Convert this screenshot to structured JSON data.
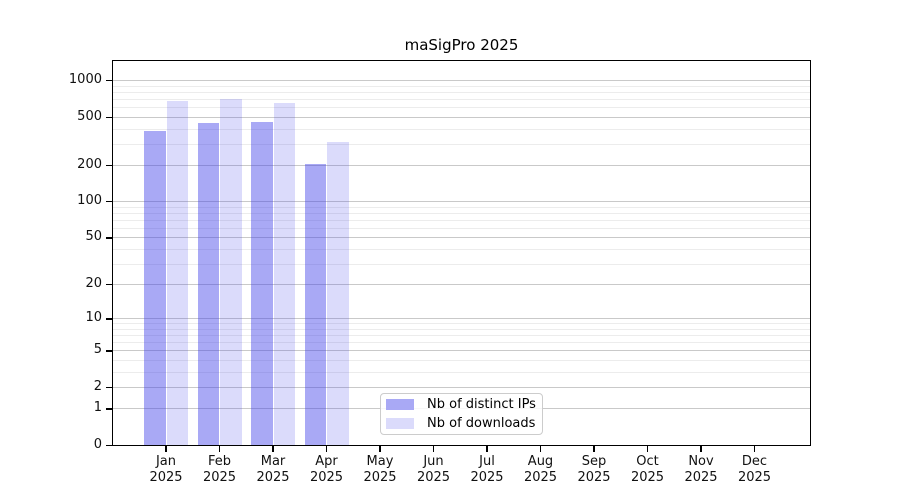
{
  "title": "maSigPro 2025",
  "colors": {
    "bar_distinct_ips": "rgba(64,64,232,0.45)",
    "bar_downloads": "rgba(64,64,232,0.19)",
    "swatch_distinct_ips": "#a9a9f5",
    "swatch_downloads": "#dbdbfb",
    "grid_major": "#c9c9c9",
    "grid_minor": "#ececec",
    "axis": "#000000",
    "legend_border": "#cccccc"
  },
  "chart_data": {
    "type": "bar",
    "title": "maSigPro 2025",
    "xlabel": "",
    "ylabel": "",
    "x_categories": [
      "Jan",
      "Feb",
      "Mar",
      "Apr",
      "May",
      "Jun",
      "Jul",
      "Aug",
      "Sep",
      "Oct",
      "Nov",
      "Dec"
    ],
    "x_year_label": "2025",
    "y_scale": "log1p",
    "y_ticks": [
      0,
      1,
      2,
      5,
      10,
      20,
      50,
      100,
      200,
      500,
      1000
    ],
    "y_minor_ticks": [
      3,
      4,
      6,
      7,
      8,
      9,
      30,
      40,
      60,
      70,
      80,
      90,
      300,
      400,
      600,
      700,
      800,
      900
    ],
    "ylim": [
      0,
      1450
    ],
    "grid": "horizontal",
    "legend_position": "inside-bottom-center",
    "series": [
      {
        "name": "Nb of distinct IPs",
        "fill": "rgba(64,64,232,0.45)",
        "swatch": "#a9a9f5",
        "values": [
          380,
          445,
          455,
          205,
          null,
          null,
          null,
          null,
          null,
          null,
          null,
          null
        ]
      },
      {
        "name": "Nb of downloads",
        "fill": "rgba(64,64,232,0.19)",
        "swatch": "#dbdbfb",
        "values": [
          680,
          705,
          650,
          310,
          null,
          null,
          null,
          null,
          null,
          null,
          null,
          null
        ]
      }
    ]
  }
}
